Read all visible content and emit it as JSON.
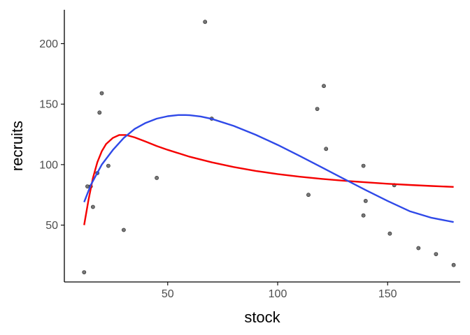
{
  "chart_data": {
    "type": "scatter",
    "xlabel": "stock",
    "ylabel": "recruits",
    "xlim": [
      3,
      183
    ],
    "ylim": [
      3,
      228
    ],
    "x_ticks": [
      50,
      100,
      150
    ],
    "y_ticks": [
      50,
      100,
      150,
      200
    ],
    "grid": false,
    "legend": "none",
    "points": [
      [
        12,
        11
      ],
      [
        13.5,
        82
      ],
      [
        15,
        82
      ],
      [
        16,
        65
      ],
      [
        18,
        93
      ],
      [
        19,
        143
      ],
      [
        20,
        159
      ],
      [
        23,
        99
      ],
      [
        30,
        46
      ],
      [
        45,
        89
      ],
      [
        67,
        218
      ],
      [
        70,
        138
      ],
      [
        114,
        75
      ],
      [
        118,
        146
      ],
      [
        121,
        165
      ],
      [
        122,
        113
      ],
      [
        139,
        99
      ],
      [
        139,
        58
      ],
      [
        140,
        70
      ],
      [
        151,
        43
      ],
      [
        153,
        83
      ],
      [
        164,
        31
      ],
      [
        172,
        26
      ],
      [
        180,
        17
      ]
    ],
    "series": [
      {
        "type": "line",
        "color": "#f50000",
        "x": [
          12,
          14,
          16,
          18,
          20,
          22,
          25,
          28,
          31,
          35,
          40,
          45,
          50,
          60,
          70,
          80,
          90,
          100,
          110,
          120,
          130,
          140,
          150,
          160,
          170,
          180
        ],
        "y": [
          50,
          71,
          89,
          102,
          111,
          117,
          122,
          124.5,
          124.5,
          122.5,
          119,
          115.4,
          112.2,
          106.5,
          101.9,
          98.0,
          94.8,
          92.2,
          90.0,
          88.2,
          86.7,
          85.4,
          84.2,
          83.2,
          82.3,
          81.6
        ]
      },
      {
        "type": "line",
        "color": "#2f49e8",
        "x": [
          12,
          15,
          20,
          25,
          30,
          35,
          40,
          45,
          50,
          55,
          58,
          60,
          65,
          70,
          80,
          90,
          100,
          110,
          120,
          130,
          140,
          150,
          160,
          170,
          180
        ],
        "y": [
          69,
          83,
          100,
          112,
          122,
          129.5,
          134.5,
          138,
          140,
          141,
          141,
          140.8,
          139.8,
          137.8,
          132,
          124.7,
          116.3,
          107.2,
          97.8,
          88.3,
          79,
          70,
          61.5,
          56,
          52.5
        ]
      }
    ],
    "point_color": "#555555"
  }
}
